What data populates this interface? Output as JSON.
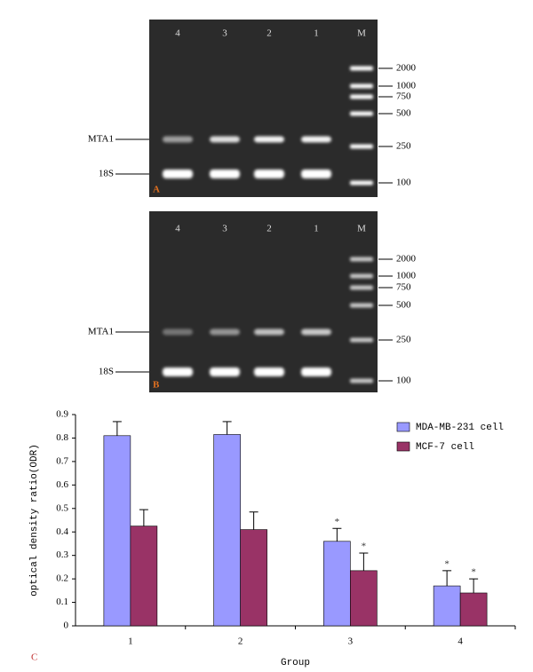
{
  "gels": [
    {
      "panel": "A",
      "lanes": [
        "4",
        "3",
        "2",
        "1",
        "M"
      ],
      "markers": [
        "2000",
        "1000",
        "750",
        "500",
        "250",
        "100"
      ],
      "bands": [
        "MTA1",
        "18S"
      ]
    },
    {
      "panel": "B",
      "lanes": [
        "4",
        "3",
        "2",
        "1",
        "M"
      ],
      "markers": [
        "2000",
        "1000",
        "750",
        "500",
        "250",
        "100"
      ],
      "bands": [
        "MTA1",
        "18S"
      ]
    }
  ],
  "chart_data": {
    "type": "bar",
    "panel": "C",
    "ylabel": "optical density ratio(ODR)",
    "xlabel": "Group",
    "categories": [
      "1",
      "2",
      "3",
      "4"
    ],
    "series": [
      {
        "name": "MDA-MB-231 cell",
        "color": "#9999ff",
        "values": [
          0.81,
          0.815,
          0.36,
          0.17
        ],
        "errors": [
          0.06,
          0.055,
          0.055,
          0.065
        ]
      },
      {
        "name": "MCF-7 cell",
        "color": "#993366",
        "values": [
          0.425,
          0.41,
          0.235,
          0.14
        ],
        "errors": [
          0.07,
          0.075,
          0.075,
          0.06
        ]
      }
    ],
    "annotations": [
      {
        "text": "*",
        "series": "MDA-MB-231 cell",
        "category": "3"
      },
      {
        "text": "*",
        "series": "MCF-7 cell",
        "category": "3"
      },
      {
        "text": "*",
        "series": "MDA-MB-231 cell",
        "category": "4"
      },
      {
        "text": "*",
        "series": "MCF-7 cell",
        "category": "4"
      }
    ],
    "ylim": [
      0,
      0.9
    ],
    "yticks": [
      0,
      0.1,
      0.2,
      0.3,
      0.4,
      0.5,
      0.6,
      0.7,
      0.8,
      0.9
    ],
    "legend": "top-right"
  }
}
